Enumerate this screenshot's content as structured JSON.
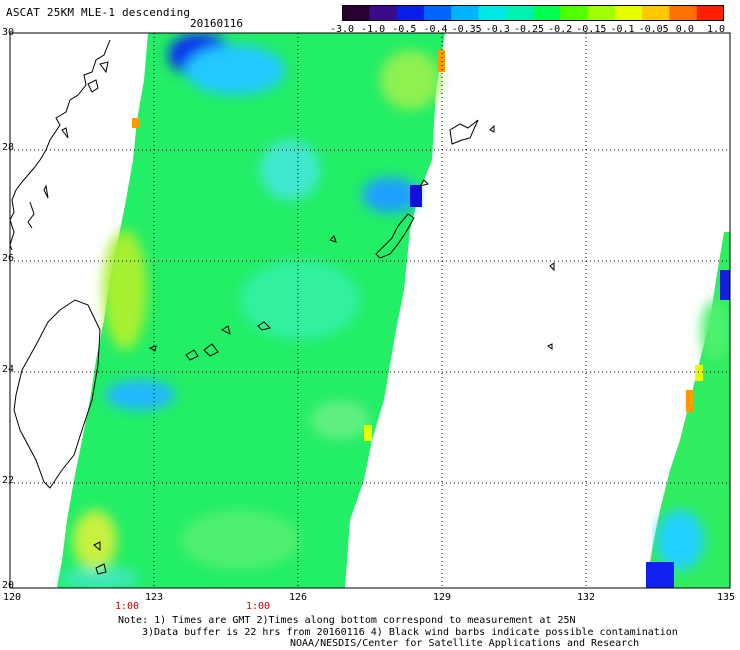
{
  "header": {
    "title": "ASCAT 25KM MLE-1 descending",
    "date": "20160116"
  },
  "colorbar": {
    "colors": [
      "#2a0033",
      "#3a0a8a",
      "#0a1ee6",
      "#0064ff",
      "#00b4ff",
      "#00e6e6",
      "#00f0b4",
      "#00ff50",
      "#50ff00",
      "#a0ff00",
      "#e6ff00",
      "#ffc800",
      "#ff7000",
      "#ff2000"
    ],
    "tick_labels": [
      "-3.0",
      "-1.0",
      "-0.5",
      "-0.4",
      "-0.35",
      "-0.3",
      "-0.25",
      "-0.2",
      "-0.15",
      "-0.1",
      "-0.05",
      "0.0",
      "1.0"
    ]
  },
  "map": {
    "lat_labels": [
      "30",
      "28",
      "26",
      "24",
      "22",
      "20"
    ],
    "lon_labels": [
      "120",
      "123",
      "126",
      "129",
      "132",
      "135"
    ],
    "time_labels": [
      "1:00",
      "1:00"
    ],
    "feature_icons": [
      "coastline-icon",
      "island-icon"
    ]
  },
  "notes": {
    "line1": "Note: 1) Times are GMT 2)Times along bottom correspond to measurement at 25N",
    "line2": "3)Data buffer is 22 hrs from 20160116 4) Black wind barbs indicate possible contamination",
    "line3": "NOAA/NESDIS/Center for Satellite Applications and Research"
  }
}
